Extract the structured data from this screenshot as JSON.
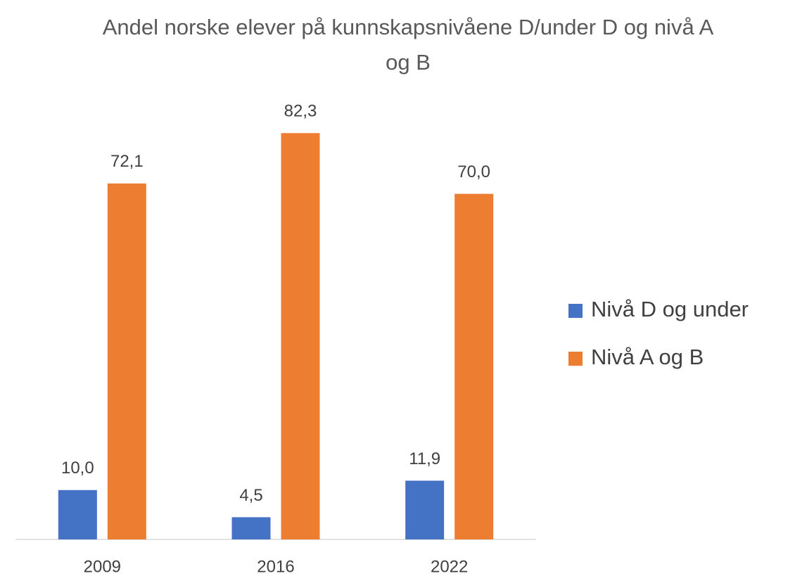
{
  "chart_data": {
    "type": "bar",
    "title": "Andel norske elever på kunnskapsnivåene D/under D og nivå A og B",
    "categories": [
      "2009",
      "2016",
      "2022"
    ],
    "series": [
      {
        "name": "Nivå D og under",
        "color": "#4472c4",
        "values": [
          10.0,
          4.5,
          11.9
        ],
        "value_labels": [
          "10,0",
          "4,5",
          "11,9"
        ]
      },
      {
        "name": "Nivå A og B",
        "color": "#ed7d31",
        "values": [
          72.1,
          82.3,
          70.0
        ],
        "value_labels": [
          "72,1",
          "82,3",
          "70,0"
        ]
      }
    ],
    "legend": "right"
  }
}
